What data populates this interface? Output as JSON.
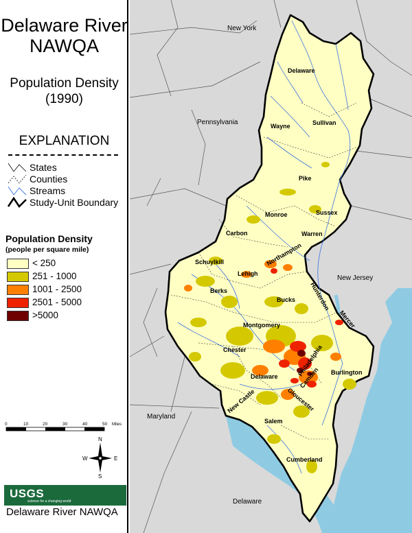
{
  "title": "Delaware River NAWQA",
  "subtitle": "Population Density (1990)",
  "explanation": "EXPLANATION",
  "legend_lines": [
    {
      "label": "States",
      "style": "solid-thin"
    },
    {
      "label": "Counties",
      "style": "dashed-thin"
    },
    {
      "label": "Streams",
      "style": "stream"
    },
    {
      "label": "Study-Unit Boundary",
      "style": "solid-thick"
    }
  ],
  "population_density": {
    "title": "Population Density",
    "units": "(people per square mile)",
    "classes": [
      {
        "label": "< 250",
        "color": "#ffffc4"
      },
      {
        "label": "251 - 1000",
        "color": "#d4c900"
      },
      {
        "label": "1001 - 2500",
        "color": "#ff8000"
      },
      {
        "label": "2501 - 5000",
        "color": "#ee2200"
      },
      {
        "label": ">5000",
        "color": "#6e0000"
      }
    ]
  },
  "scale_bar": {
    "ticks": [
      "0",
      "10",
      "20",
      "30",
      "40",
      "50"
    ],
    "unit": "Miles"
  },
  "compass": {
    "n": "N",
    "s": "S",
    "e": "E",
    "w": "W"
  },
  "logo": {
    "name": "USGS",
    "tagline": "science for a changing world"
  },
  "footer": "Delaware River NAWQA",
  "map": {
    "state_labels": [
      "New York",
      "Pennsylvania",
      "New Jersey",
      "Maryland",
      "Delaware"
    ],
    "county_labels": [
      "Delaware",
      "Wayne",
      "Sullivan",
      "Pike",
      "Monroe",
      "Sussex",
      "Carbon",
      "Warren",
      "Schuylkill",
      "Northampton",
      "Lehigh",
      "Berks",
      "Bucks",
      "Hunterdon",
      "Montgomery",
      "Mercer",
      "Chester",
      "Philadelphia",
      "Burlington",
      "Delaware",
      "Camden",
      "Gloucester",
      "New Castle",
      "Salem",
      "Cumberland"
    ],
    "colors": {
      "water": "#8ecbe3",
      "land": "#d9d9d9",
      "study_unit": "#ffffc4",
      "stream": "#3a72e0"
    }
  }
}
